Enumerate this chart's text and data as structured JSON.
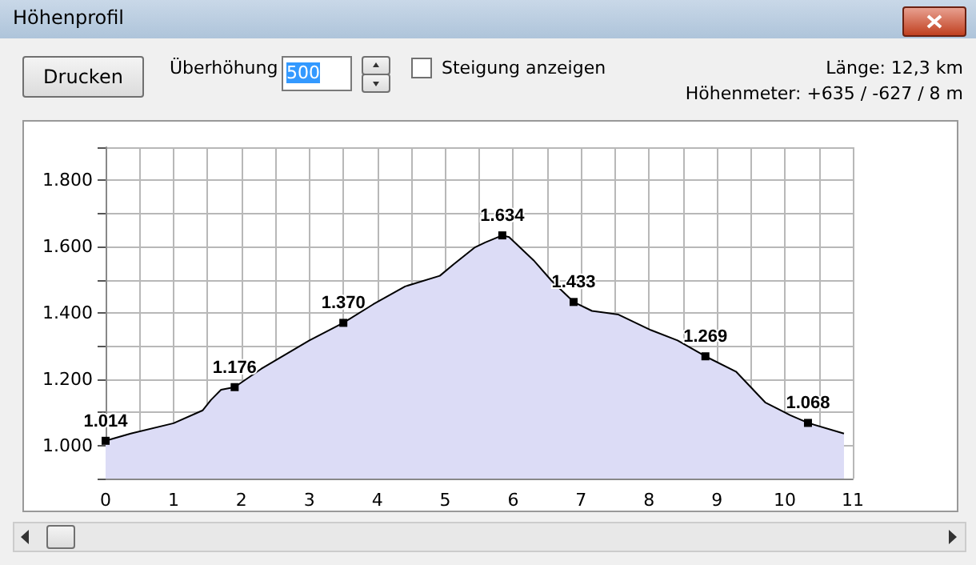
{
  "chart_data": {
    "type": "area",
    "title": "Höhenprofil",
    "annotations": [
      "Drucken",
      "Überhöhung",
      "500",
      "Steigung anzeigen",
      "Länge: 12,3 km",
      "Höhenmeter: +635 / -627 / 8 m"
    ],
    "x": [
      0,
      0.37,
      1.0,
      1.43,
      1.55,
      1.7,
      1.9,
      2.29,
      3.0,
      3.5,
      3.94,
      4.41,
      4.92,
      5.12,
      5.43,
      5.59,
      5.84,
      5.94,
      6.3,
      6.57,
      6.89,
      7.16,
      7.55,
      8.03,
      8.42,
      8.83,
      9.28,
      9.71,
      10.08,
      10.34,
      10.87
    ],
    "series": [
      {
        "color": "#dcdcf6",
        "values": [
          1014,
          1036,
          1067,
          1106,
          1137,
          1168,
          1176,
          1231,
          1317,
          1370,
          1426,
          1480,
          1512,
          1546,
          1597,
          1613,
          1634,
          1629,
          1559,
          1496,
          1433,
          1406,
          1395,
          1348,
          1317,
          1269,
          1223,
          1130,
          1091,
          1068,
          1036
        ],
        "value_labels": [
          "1.014",
          null,
          null,
          null,
          null,
          null,
          "1.176",
          null,
          null,
          "1.370",
          null,
          null,
          null,
          null,
          null,
          null,
          "1.634",
          null,
          null,
          null,
          "1.433",
          null,
          null,
          null,
          null,
          "1.269",
          null,
          null,
          null,
          "1.068",
          null
        ]
      }
    ],
    "grid": true,
    "xlim": [
      0,
      11
    ],
    "xticks": [
      0,
      {
        "value": 0.5,
        "label": null
      },
      1,
      {
        "value": 1.5,
        "label": null
      },
      2,
      {
        "value": 2.5,
        "label": null
      },
      3,
      {
        "value": 3.5,
        "label": null
      },
      4,
      {
        "value": 4.5,
        "label": null
      },
      5,
      {
        "value": 5.5,
        "label": null
      },
      6,
      {
        "value": 6.5,
        "label": null
      },
      7,
      {
        "value": 7.5,
        "label": null
      },
      8,
      {
        "value": 8.5,
        "label": null
      },
      9,
      {
        "value": 9.5,
        "label": null
      },
      10,
      {
        "value": 10.5,
        "label": null
      },
      11
    ],
    "ylim": [
      900,
      1900
    ],
    "yticks": [
      {
        "value": 900,
        "label": null
      },
      {
        "value": 1000,
        "label": "1.000"
      },
      {
        "value": 1100,
        "label": null
      },
      {
        "value": 1200,
        "label": "1.200"
      },
      {
        "value": 1300,
        "label": null
      },
      {
        "value": 1400,
        "label": "1.400"
      },
      {
        "value": 1500,
        "label": null
      },
      {
        "value": 1600,
        "label": "1.600"
      },
      {
        "value": 1700,
        "label": null
      },
      {
        "value": 1800,
        "label": "1.800"
      },
      {
        "value": 1900,
        "label": null
      }
    ]
  }
}
